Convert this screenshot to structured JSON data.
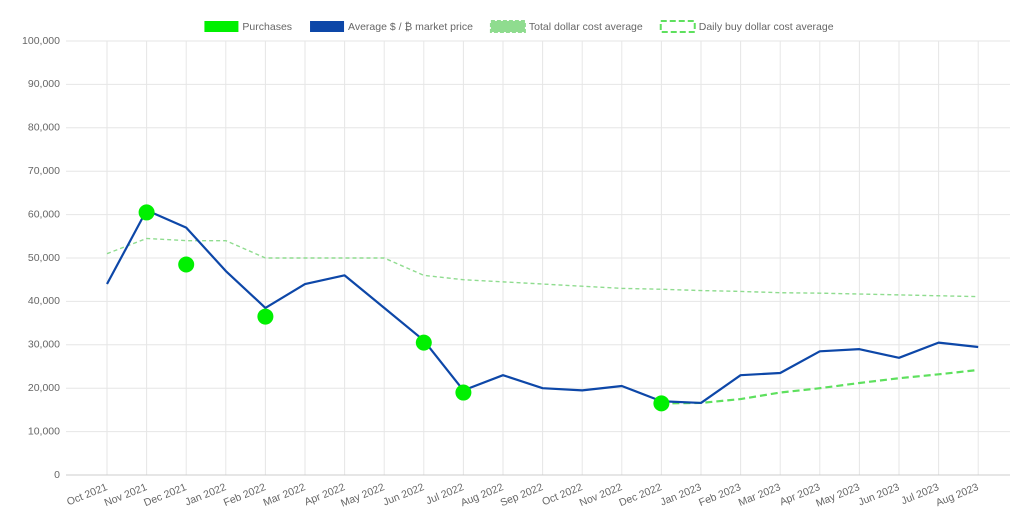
{
  "chart_data": {
    "type": "line",
    "x": [
      "Oct 2021",
      "Nov 2021",
      "Dec 2021",
      "Jan 2022",
      "Feb 2022",
      "Mar 2022",
      "Apr 2022",
      "May 2022",
      "Jun 2022",
      "Jul 2022",
      "Aug 2022",
      "Sep 2022",
      "Oct 2022",
      "Nov 2022",
      "Dec 2022",
      "Jan 2023",
      "Feb 2023",
      "Mar 2023",
      "Apr 2023",
      "May 2023",
      "Jun 2023",
      "Jul 2023",
      "Aug 2023"
    ],
    "series": [
      {
        "name": "Purchases",
        "color": "#00f000",
        "style": "scatter",
        "values": [
          null,
          60500,
          48500,
          null,
          36500,
          null,
          null,
          null,
          30500,
          19000,
          null,
          null,
          null,
          null,
          16500,
          null,
          null,
          null,
          null,
          null,
          null,
          null,
          null
        ]
      },
      {
        "name": "Average $ / ₿ market price",
        "color": "#0d47a8",
        "style": "solid",
        "values": [
          44000,
          61000,
          57000,
          47000,
          38500,
          44000,
          46000,
          38500,
          31000,
          19500,
          23000,
          20000,
          19500,
          20500,
          17000,
          16600,
          23000,
          23500,
          28500,
          29000,
          27000,
          30500,
          29500
        ]
      },
      {
        "name": "Total dollar cost average",
        "color": "#8fdc8f",
        "style": "dashed",
        "values": [
          51000,
          54500,
          54000,
          54000,
          50000,
          50000,
          50000,
          50000,
          46000,
          45000,
          44500,
          44000,
          43500,
          43000,
          42800,
          42500,
          42300,
          42000,
          41900,
          41700,
          41500,
          41300,
          41100
        ]
      },
      {
        "name": "Daily buy dollar cost average",
        "color": "#5ee05e",
        "style": "dashed-bold",
        "values": [
          null,
          null,
          null,
          null,
          null,
          null,
          null,
          null,
          null,
          null,
          null,
          null,
          null,
          null,
          16500,
          16600,
          17500,
          19000,
          20000,
          21200,
          22300,
          23200,
          24200
        ]
      }
    ],
    "ylim": [
      0,
      100000
    ],
    "yticks": [
      0,
      {
        "value": 10000,
        "label": "10,000"
      },
      {
        "value": 20000,
        "label": "20,000"
      },
      {
        "value": 30000,
        "label": "30,000"
      },
      {
        "value": 40000,
        "label": "40,000"
      },
      {
        "value": 50000,
        "label": "50,000"
      },
      {
        "value": 60000,
        "label": "60,000"
      },
      {
        "value": 70000,
        "label": "70,000"
      },
      {
        "value": 80000,
        "label": "80,000"
      },
      {
        "value": 90000,
        "label": "90,000"
      },
      {
        "value": 100000,
        "label": "100,000"
      }
    ],
    "grid": true,
    "legend": "top"
  }
}
